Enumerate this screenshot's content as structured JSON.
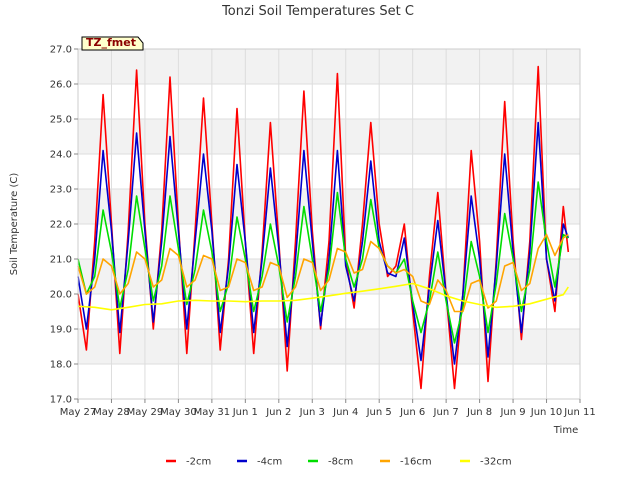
{
  "chart_data": {
    "type": "line",
    "title": "Tonzi Soil Temperatures Set C",
    "xlabel": "Time",
    "ylabel": "Soil Temperature (C)",
    "ylim": [
      17.0,
      27.0
    ],
    "y_ticks": [
      "17.0",
      "18.0",
      "19.0",
      "20.0",
      "21.0",
      "22.0",
      "23.0",
      "24.0",
      "25.0",
      "26.0",
      "27.0"
    ],
    "x_ticks": [
      "May 27",
      "May 28",
      "May 29",
      "May 30",
      "May 31",
      "Jun 1",
      "Jun 2",
      "Jun 3",
      "Jun 4",
      "Jun 5",
      "Jun 6",
      "Jun 7",
      "Jun 8",
      "Jun 9",
      "Jun 10",
      "Jun 11"
    ],
    "xlim_days": [
      0,
      15
    ],
    "grid": true,
    "legend_position": "bottom",
    "annotation": "TZ_fmet",
    "series": [
      {
        "name": "-2cm",
        "color": "#ff0000",
        "x": [
          0.0,
          0.25,
          0.5,
          0.75,
          1.0,
          1.25,
          1.5,
          1.75,
          2.0,
          2.25,
          2.5,
          2.75,
          3.0,
          3.25,
          3.5,
          3.75,
          4.0,
          4.25,
          4.5,
          4.75,
          5.0,
          5.25,
          5.5,
          5.75,
          6.0,
          6.25,
          6.5,
          6.75,
          7.0,
          7.25,
          7.5,
          7.75,
          8.0,
          8.25,
          8.5,
          8.75,
          9.0,
          9.25,
          9.5,
          9.75,
          10.0,
          10.25,
          10.5,
          10.75,
          11.0,
          11.25,
          11.5,
          11.75,
          12.0,
          12.25,
          12.5,
          12.75,
          13.0,
          13.25,
          13.5,
          13.75,
          14.0,
          14.25,
          14.5,
          14.65
        ],
        "values": [
          20.0,
          18.4,
          21.5,
          25.7,
          22.0,
          18.3,
          21.8,
          26.4,
          22.0,
          19.0,
          21.8,
          26.2,
          22.0,
          18.3,
          21.8,
          25.6,
          22.0,
          18.4,
          21.0,
          25.3,
          21.5,
          18.3,
          21.2,
          24.9,
          21.5,
          17.8,
          21.5,
          25.8,
          21.8,
          19.0,
          21.5,
          26.3,
          21.0,
          19.6,
          22.0,
          24.9,
          22.0,
          20.5,
          20.8,
          22.0,
          19.5,
          17.3,
          20.5,
          22.9,
          20.0,
          17.3,
          20.0,
          24.1,
          21.5,
          17.5,
          21.0,
          25.5,
          21.5,
          18.7,
          21.5,
          26.5,
          21.0,
          19.5,
          22.5,
          21.2
        ]
      },
      {
        "name": "-4cm",
        "color": "#0000cc",
        "x": [
          0.0,
          0.25,
          0.5,
          0.75,
          1.0,
          1.25,
          1.5,
          1.75,
          2.0,
          2.25,
          2.5,
          2.75,
          3.0,
          3.25,
          3.5,
          3.75,
          4.0,
          4.25,
          4.5,
          4.75,
          5.0,
          5.25,
          5.5,
          5.75,
          6.0,
          6.25,
          6.5,
          6.75,
          7.0,
          7.25,
          7.5,
          7.75,
          8.0,
          8.25,
          8.5,
          8.75,
          9.0,
          9.25,
          9.5,
          9.75,
          10.0,
          10.25,
          10.5,
          10.75,
          11.0,
          11.25,
          11.5,
          11.75,
          12.0,
          12.25,
          12.5,
          12.75,
          13.0,
          13.25,
          13.5,
          13.75,
          14.0,
          14.25,
          14.5,
          14.65
        ],
        "values": [
          20.5,
          19.0,
          21.0,
          24.1,
          21.8,
          18.9,
          21.5,
          24.6,
          21.8,
          19.2,
          21.5,
          24.5,
          21.8,
          19.0,
          21.5,
          24.0,
          21.8,
          18.9,
          20.8,
          23.7,
          21.5,
          18.9,
          21.0,
          23.6,
          21.3,
          18.5,
          21.0,
          24.1,
          21.5,
          19.1,
          21.0,
          24.1,
          20.8,
          19.8,
          21.5,
          23.8,
          21.5,
          20.6,
          20.5,
          21.6,
          19.7,
          18.1,
          20.2,
          22.1,
          20.0,
          18.0,
          20.0,
          22.8,
          21.0,
          18.2,
          20.8,
          24.0,
          21.2,
          18.9,
          21.2,
          24.9,
          21.0,
          19.8,
          22.0,
          21.6
        ]
      },
      {
        "name": "-8cm",
        "color": "#00dd00",
        "x": [
          0.0,
          0.25,
          0.5,
          0.75,
          1.0,
          1.25,
          1.5,
          1.75,
          2.0,
          2.25,
          2.5,
          2.75,
          3.0,
          3.25,
          3.5,
          3.75,
          4.0,
          4.25,
          4.5,
          4.75,
          5.0,
          5.25,
          5.5,
          5.75,
          6.0,
          6.25,
          6.5,
          6.75,
          7.0,
          7.25,
          7.5,
          7.75,
          8.0,
          8.25,
          8.5,
          8.75,
          9.0,
          9.25,
          9.5,
          9.75,
          10.0,
          10.25,
          10.5,
          10.75,
          11.0,
          11.25,
          11.5,
          11.75,
          12.0,
          12.25,
          12.5,
          12.75,
          13.0,
          13.25,
          13.5,
          13.75,
          14.0,
          14.25,
          14.5,
          14.65
        ],
        "values": [
          21.0,
          20.0,
          20.5,
          22.4,
          21.2,
          19.6,
          20.7,
          22.8,
          21.3,
          19.8,
          20.8,
          22.8,
          21.3,
          19.7,
          20.7,
          22.4,
          21.2,
          19.5,
          20.3,
          22.2,
          21.0,
          19.5,
          20.5,
          22.0,
          20.8,
          19.2,
          20.5,
          22.5,
          21.0,
          19.5,
          20.7,
          22.9,
          21.0,
          20.2,
          21.0,
          22.7,
          21.3,
          20.8,
          20.6,
          21.0,
          19.8,
          18.9,
          19.8,
          21.2,
          19.8,
          18.6,
          19.6,
          21.5,
          20.5,
          18.9,
          20.3,
          22.3,
          21.0,
          19.5,
          20.7,
          23.2,
          21.5,
          20.2,
          21.7,
          21.6
        ]
      },
      {
        "name": "-16cm",
        "color": "#ffa500",
        "x": [
          0.0,
          0.25,
          0.5,
          0.75,
          1.0,
          1.25,
          1.5,
          1.75,
          2.0,
          2.25,
          2.5,
          2.75,
          3.0,
          3.25,
          3.5,
          3.75,
          4.0,
          4.25,
          4.5,
          4.75,
          5.0,
          5.25,
          5.5,
          5.75,
          6.0,
          6.25,
          6.5,
          6.75,
          7.0,
          7.25,
          7.5,
          7.75,
          8.0,
          8.25,
          8.5,
          8.75,
          9.0,
          9.25,
          9.5,
          9.75,
          10.0,
          10.25,
          10.5,
          10.75,
          11.0,
          11.25,
          11.5,
          11.75,
          12.0,
          12.25,
          12.5,
          12.75,
          13.0,
          13.25,
          13.5,
          13.75,
          14.0,
          14.25,
          14.5,
          14.65
        ],
        "values": [
          20.8,
          20.0,
          20.2,
          21.0,
          20.8,
          20.0,
          20.3,
          21.2,
          21.0,
          20.2,
          20.4,
          21.3,
          21.1,
          20.2,
          20.4,
          21.1,
          21.0,
          20.1,
          20.2,
          21.0,
          20.9,
          20.1,
          20.2,
          20.9,
          20.8,
          19.9,
          20.2,
          21.0,
          20.9,
          20.1,
          20.4,
          21.3,
          21.2,
          20.6,
          20.7,
          21.5,
          21.3,
          20.8,
          20.6,
          20.7,
          20.5,
          19.8,
          19.7,
          20.4,
          20.1,
          19.5,
          19.5,
          20.3,
          20.4,
          19.6,
          19.8,
          20.8,
          20.9,
          20.1,
          20.3,
          21.3,
          21.7,
          21.1,
          21.6,
          21.7
        ]
      },
      {
        "name": "-32cm",
        "color": "#ffff00",
        "x": [
          0.0,
          0.5,
          1.0,
          1.5,
          2.0,
          2.5,
          3.0,
          3.5,
          4.0,
          4.5,
          5.0,
          5.5,
          6.0,
          6.5,
          7.0,
          7.5,
          8.0,
          8.5,
          9.0,
          9.5,
          10.0,
          10.5,
          11.0,
          11.5,
          12.0,
          12.5,
          13.0,
          13.5,
          14.0,
          14.5,
          14.65
        ],
        "values": [
          19.65,
          19.62,
          19.55,
          19.62,
          19.7,
          19.72,
          19.8,
          19.82,
          19.8,
          19.8,
          19.78,
          19.8,
          19.8,
          19.82,
          19.88,
          19.95,
          20.02,
          20.08,
          20.15,
          20.22,
          20.3,
          20.15,
          19.95,
          19.8,
          19.7,
          19.62,
          19.65,
          19.72,
          19.85,
          19.98,
          20.2
        ]
      }
    ]
  }
}
